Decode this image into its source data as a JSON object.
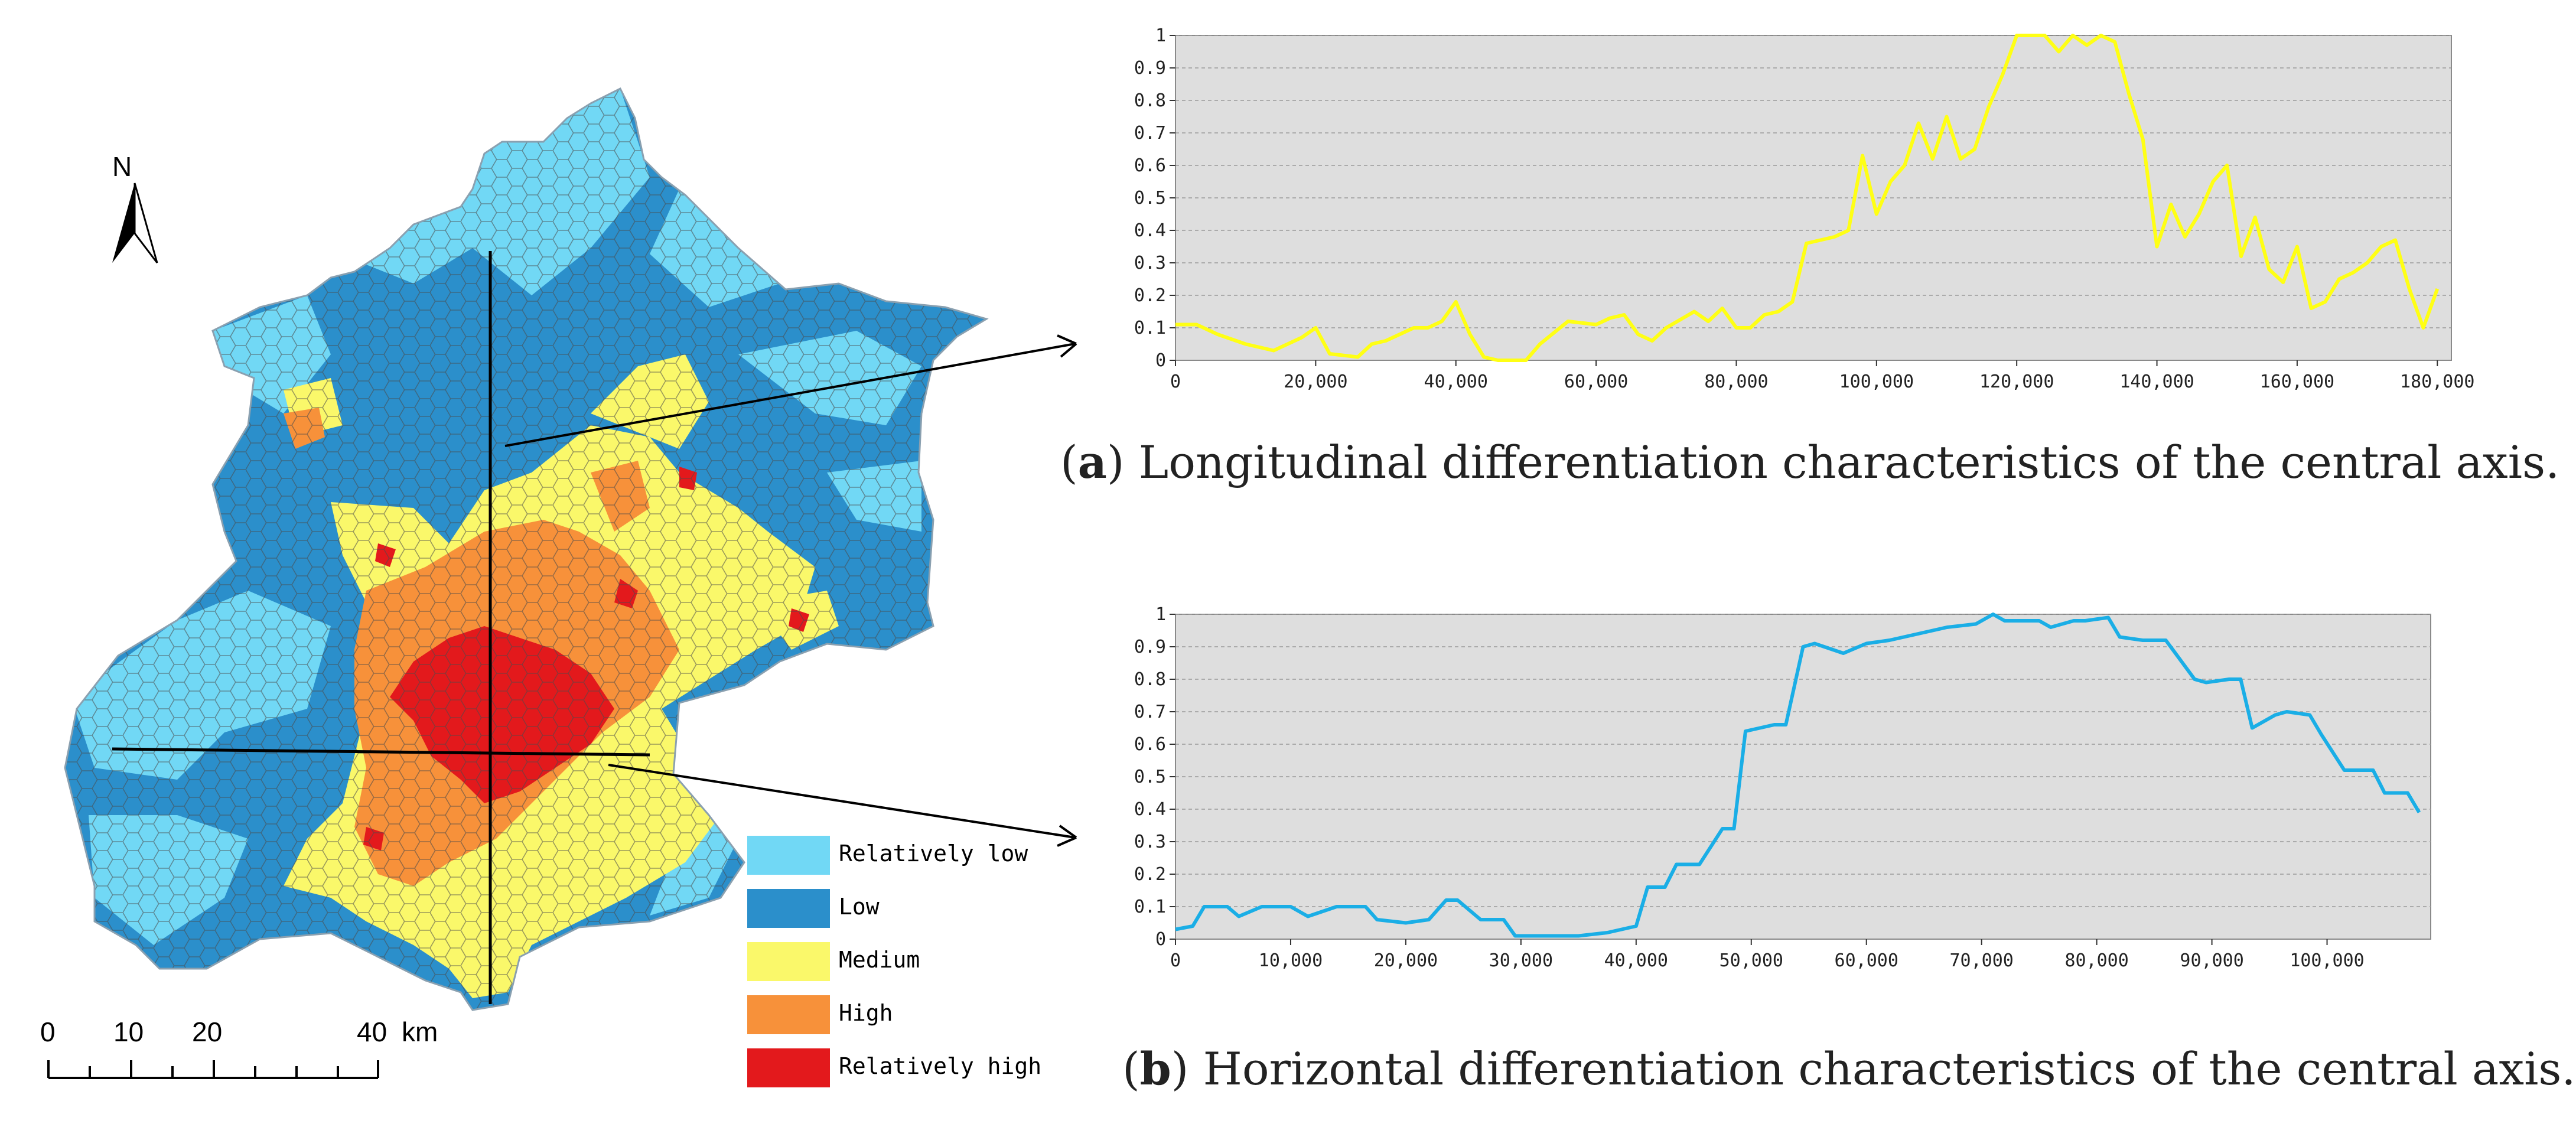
{
  "legend": {
    "items": [
      {
        "label": "Relatively low",
        "color": "#71d8f5"
      },
      {
        "label": "Low",
        "color": "#2b8fcb"
      },
      {
        "label": "Medium",
        "color": "#faf86a"
      },
      {
        "label": "High",
        "color": "#f7913a"
      },
      {
        "label": "Relatively high",
        "color": "#e3191c"
      }
    ]
  },
  "map": {
    "north_label": "N",
    "scale_labels": [
      "0",
      "10",
      "20",
      "40",
      "km"
    ]
  },
  "charts": [
    {
      "id": "a",
      "caption_letter": "a",
      "caption_text": "Longitudinal differentiation characteristics of the central axis.",
      "line_color": "#ffff14",
      "chart_data": {
        "type": "line",
        "title": "",
        "xlabel": "",
        "ylabel": "",
        "xlim": [
          0,
          182000
        ],
        "ylim": [
          0,
          1
        ],
        "x_ticks": [
          "0",
          "20,000",
          "40,000",
          "60,000",
          "80,000",
          "100,000",
          "120,000",
          "140,000",
          "160,000",
          "180,000"
        ],
        "y_ticks": [
          "0",
          "0.1",
          "0.2",
          "0.3",
          "0.4",
          "0.5",
          "0.6",
          "0.7",
          "0.8",
          "0.9",
          "1"
        ],
        "x": [
          0,
          3000,
          6000,
          10000,
          14000,
          18000,
          20000,
          22000,
          26000,
          28000,
          30000,
          34000,
          36000,
          38000,
          40000,
          42000,
          44000,
          46000,
          48000,
          50000,
          52000,
          56000,
          60000,
          62000,
          64000,
          66000,
          68000,
          70000,
          74000,
          76000,
          78000,
          80000,
          82000,
          84000,
          86000,
          88000,
          90000,
          92000,
          94000,
          96000,
          98000,
          100000,
          102000,
          104000,
          106000,
          108000,
          110000,
          112000,
          114000,
          116000,
          118000,
          120000,
          122000,
          124000,
          126000,
          128000,
          130000,
          132000,
          134000,
          136000,
          138000,
          140000,
          142000,
          144000,
          146000,
          148000,
          150000,
          152000,
          154000,
          156000,
          158000,
          160000,
          162000,
          164000,
          166000,
          168000,
          170000,
          172000,
          174000,
          176000,
          178000,
          180000
        ],
        "y": [
          0.11,
          0.11,
          0.08,
          0.05,
          0.03,
          0.07,
          0.1,
          0.02,
          0.01,
          0.05,
          0.06,
          0.1,
          0.1,
          0.12,
          0.18,
          0.08,
          0.01,
          0,
          0,
          0,
          0.05,
          0.12,
          0.11,
          0.13,
          0.14,
          0.08,
          0.06,
          0.1,
          0.15,
          0.12,
          0.16,
          0.1,
          0.1,
          0.14,
          0.15,
          0.18,
          0.36,
          0.37,
          0.38,
          0.4,
          0.63,
          0.45,
          0.55,
          0.6,
          0.73,
          0.62,
          0.75,
          0.62,
          0.65,
          0.78,
          0.88,
          1,
          1,
          1,
          0.95,
          1,
          0.97,
          1,
          0.98,
          0.82,
          0.68,
          0.35,
          0.48,
          0.38,
          0.45,
          0.55,
          0.6,
          0.32,
          0.44,
          0.28,
          0.24,
          0.35,
          0.16,
          0.18,
          0.25,
          0.27,
          0.3,
          0.35,
          0.37,
          0.22,
          0.1,
          0.22
        ]
      }
    },
    {
      "id": "b",
      "caption_letter": "b",
      "caption_text": "Horizontal differentiation characteristics of the central axis.",
      "line_color": "#1aaee6",
      "chart_data": {
        "type": "line",
        "title": "",
        "xlabel": "",
        "ylabel": "",
        "xlim": [
          0,
          109000
        ],
        "ylim": [
          0,
          1
        ],
        "x_ticks": [
          "0",
          "10,000",
          "20,000",
          "30,000",
          "40,000",
          "50,000",
          "60,000",
          "70,000",
          "80,000",
          "90,000",
          "100,000"
        ],
        "y_ticks": [
          "0",
          "0.1",
          "0.2",
          "0.3",
          "0.4",
          "0.5",
          "0.6",
          "0.7",
          "0.8",
          "0.9",
          "1"
        ],
        "x": [
          0,
          1500,
          2500,
          4500,
          5500,
          7500,
          10000,
          11500,
          14000,
          16500,
          17500,
          20000,
          22000,
          23500,
          24500,
          26500,
          28500,
          29500,
          31000,
          35000,
          37500,
          40000,
          41000,
          42500,
          43500,
          45500,
          47500,
          48500,
          49500,
          52000,
          53000,
          54500,
          55500,
          58000,
          60000,
          62000,
          64500,
          67000,
          69500,
          71000,
          72000,
          75000,
          76000,
          78000,
          79000,
          81000,
          82000,
          84000,
          86000,
          88500,
          89500,
          91500,
          92500,
          93500,
          95500,
          96500,
          98500,
          99500,
          101500,
          104000,
          105000,
          107000,
          108000
        ],
        "y": [
          0.03,
          0.04,
          0.1,
          0.1,
          0.07,
          0.1,
          0.1,
          0.07,
          0.1,
          0.1,
          0.06,
          0.05,
          0.06,
          0.12,
          0.12,
          0.06,
          0.06,
          0.01,
          0.01,
          0.01,
          0.02,
          0.04,
          0.16,
          0.16,
          0.23,
          0.23,
          0.34,
          0.34,
          0.64,
          0.66,
          0.66,
          0.9,
          0.91,
          0.88,
          0.91,
          0.92,
          0.94,
          0.96,
          0.97,
          1,
          0.98,
          0.98,
          0.96,
          0.98,
          0.98,
          0.99,
          0.93,
          0.92,
          0.92,
          0.8,
          0.79,
          0.8,
          0.8,
          0.65,
          0.69,
          0.7,
          0.69,
          0.63,
          0.52,
          0.52,
          0.45,
          0.45,
          0.39
        ]
      }
    }
  ]
}
